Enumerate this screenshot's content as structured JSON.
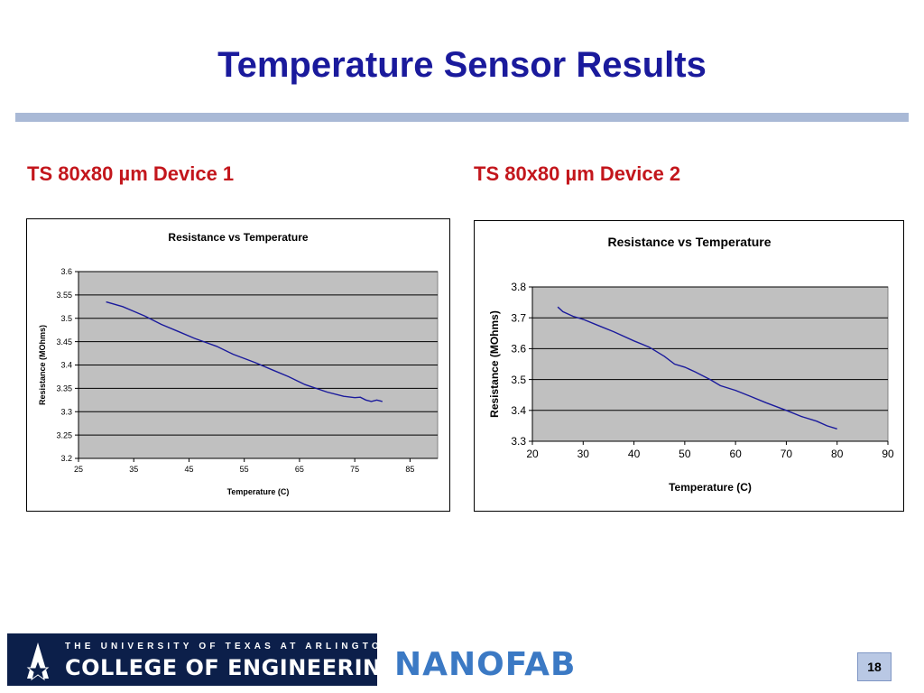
{
  "slide": {
    "title": "Temperature Sensor Results",
    "page_number": "18",
    "left_subtitle": "TS 80x80 µm Device 1",
    "right_subtitle": "TS 80x80 µm Device 2"
  },
  "footer": {
    "university_line": "THE UNIVERSITY OF TEXAS AT ARLINGTON",
    "college_line": "COLLEGE OF ENGINEERING",
    "nanofab_logo_text": "NANOFAB"
  },
  "colors": {
    "title": "#1a1a9c",
    "subtitle": "#c3161c",
    "plot_area": "#c0c0c0",
    "series_line": "#1a1a9c"
  },
  "chart_data": [
    {
      "type": "line",
      "title": "Resistance vs Temperature",
      "xlabel": "Temperature (C)",
      "ylabel": "Resistance (MOhms)",
      "xlim": [
        25,
        90
      ],
      "ylim": [
        3.2,
        3.6
      ],
      "x_ticks": [
        "25",
        "35",
        "45",
        "55",
        "65",
        "75",
        "85"
      ],
      "y_ticks": [
        "3.2",
        "3.25",
        "3.3",
        "3.35",
        "3.4",
        "3.45",
        "3.5",
        "3.55",
        "3.6"
      ],
      "grid": true,
      "legend": "none",
      "series": [
        {
          "x": [
            30,
            33,
            35,
            37,
            40,
            43,
            46,
            50,
            53,
            57,
            60,
            63,
            66,
            70,
            73,
            75,
            76,
            77,
            78,
            79,
            80
          ],
          "values": [
            3.535,
            3.525,
            3.515,
            3.505,
            3.487,
            3.472,
            3.457,
            3.44,
            3.423,
            3.405,
            3.39,
            3.375,
            3.358,
            3.342,
            3.333,
            3.33,
            3.331,
            3.325,
            3.322,
            3.325,
            3.322
          ]
        }
      ]
    },
    {
      "type": "line",
      "title": "Resistance vs Temperature",
      "xlabel": "Temperature (C)",
      "ylabel": "Resistance (MOhms)",
      "xlim": [
        20,
        90
      ],
      "ylim": [
        3.3,
        3.8
      ],
      "x_ticks": [
        "20",
        "30",
        "40",
        "50",
        "60",
        "70",
        "80",
        "90"
      ],
      "y_ticks": [
        "3.3",
        "3.4",
        "3.5",
        "3.6",
        "3.7",
        "3.8"
      ],
      "grid": true,
      "legend": "none",
      "series": [
        {
          "x": [
            25,
            26,
            28,
            30,
            33,
            36,
            40,
            43,
            46,
            48,
            50,
            52,
            55,
            57,
            60,
            63,
            66,
            70,
            73,
            76,
            78,
            80
          ],
          "values": [
            3.735,
            3.72,
            3.705,
            3.695,
            3.675,
            3.655,
            3.625,
            3.605,
            3.575,
            3.55,
            3.54,
            3.525,
            3.5,
            3.48,
            3.465,
            3.445,
            3.425,
            3.4,
            3.38,
            3.365,
            3.35,
            3.34
          ]
        }
      ]
    }
  ]
}
